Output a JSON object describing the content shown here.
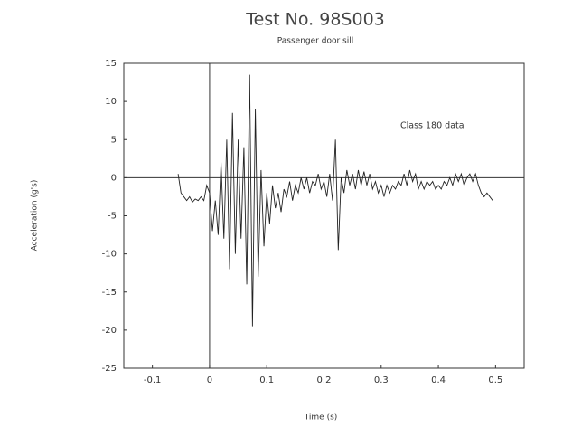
{
  "chart_data": {
    "type": "line",
    "title": "Test No. 98S003",
    "subtitle": "Passenger door sill",
    "x_label": "Time (s)",
    "y_label": "Acceleration (g's)",
    "annotation": "Class 180 data",
    "color": "#222",
    "xlim": [
      -0.15,
      0.55
    ],
    "xticks": [
      -0.1,
      0,
      0.1,
      0.2,
      0.3,
      0.4,
      0.5
    ],
    "ylim": [
      -25,
      15
    ],
    "yticks": [
      15,
      10,
      5,
      0,
      -5,
      -10,
      -15,
      -20,
      -25
    ],
    "x": [
      -0.055,
      -0.05,
      -0.045,
      -0.04,
      -0.035,
      -0.03,
      -0.025,
      -0.02,
      -0.015,
      -0.01,
      -0.005,
      0,
      0.005,
      0.01,
      0.015,
      0.02,
      0.025,
      0.03,
      0.035,
      0.04,
      0.045,
      0.05,
      0.055,
      0.06,
      0.065,
      0.07,
      0.075,
      0.08,
      0.085,
      0.09,
      0.095,
      0.1,
      0.105,
      0.11,
      0.115,
      0.12,
      0.125,
      0.13,
      0.135,
      0.14,
      0.145,
      0.15,
      0.155,
      0.16,
      0.165,
      0.17,
      0.175,
      0.18,
      0.185,
      0.19,
      0.195,
      0.2,
      0.205,
      0.21,
      0.215,
      0.22,
      0.225,
      0.23,
      0.235,
      0.24,
      0.245,
      0.25,
      0.255,
      0.26,
      0.265,
      0.27,
      0.275,
      0.28,
      0.285,
      0.29,
      0.295,
      0.3,
      0.305,
      0.31,
      0.315,
      0.32,
      0.325,
      0.33,
      0.335,
      0.34,
      0.345,
      0.35,
      0.355,
      0.36,
      0.365,
      0.37,
      0.375,
      0.38,
      0.385,
      0.39,
      0.395,
      0.4,
      0.405,
      0.41,
      0.415,
      0.42,
      0.425,
      0.43,
      0.435,
      0.44,
      0.445,
      0.45,
      0.455,
      0.46,
      0.465,
      0.47,
      0.475,
      0.48,
      0.485,
      0.49,
      0.495
    ],
    "values": [
      0.5,
      -2,
      -2.5,
      -3,
      -2.5,
      -3.2,
      -2.8,
      -3,
      -2.5,
      -3,
      -1,
      -2,
      -7,
      -3,
      -7.5,
      2,
      -8,
      5,
      -12,
      8.5,
      -10,
      5,
      -8,
      4,
      -14,
      13.5,
      -19.5,
      9,
      -13,
      1,
      -9,
      -2,
      -6,
      -1,
      -4,
      -2,
      -4.5,
      -1.5,
      -2.5,
      -0.5,
      -3,
      -1,
      -2,
      0,
      -1.5,
      0,
      -2,
      -0.5,
      -1,
      0.5,
      -1.5,
      -0.5,
      -2.5,
      0.5,
      -3,
      5,
      -9.5,
      0,
      -2,
      1,
      -1,
      0.5,
      -1.5,
      1,
      -1,
      0.8,
      -1,
      0.5,
      -1.5,
      -0.5,
      -2,
      -1,
      -2.5,
      -1,
      -2,
      -1,
      -1.5,
      -0.5,
      -1,
      0.5,
      -1,
      1,
      -0.5,
      0.5,
      -1.5,
      -0.5,
      -1.5,
      -0.5,
      -1,
      -0.5,
      -1.5,
      -1,
      -1.5,
      -0.5,
      -1,
      0,
      -1,
      0.5,
      -0.5,
      0.5,
      -1,
      0,
      0.5,
      -0.5,
      0.5,
      -1,
      -2,
      -2.5,
      -2,
      -2.5,
      -3
    ]
  }
}
